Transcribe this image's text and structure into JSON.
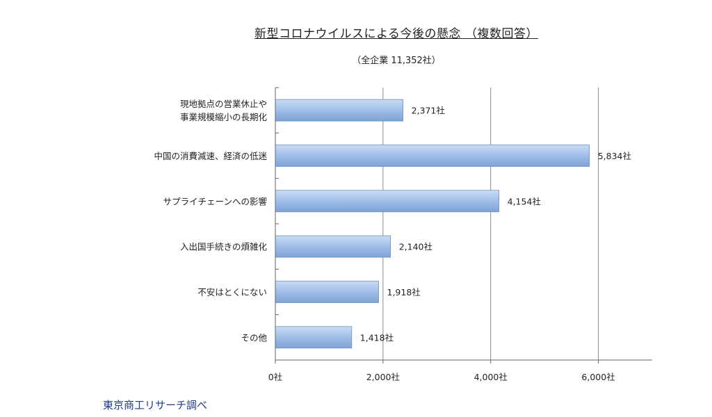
{
  "chart_data": {
    "type": "bar",
    "orientation": "horizontal",
    "title": "新型コロナウイルスによる今後の懸念 （複数回答）",
    "subtitle": "（全企業 11,352社）",
    "categories": [
      [
        "現地拠点の営業休止や",
        "事業規模縮小の長期化"
      ],
      [
        "中国の消費減速、経済の低迷"
      ],
      [
        "サプライチェーンへの影響"
      ],
      [
        "入出国手続きの煩雑化"
      ],
      [
        "不安はとくにない"
      ],
      [
        "その他"
      ]
    ],
    "values": [
      2371,
      5834,
      4154,
      2140,
      1918,
      1418
    ],
    "value_labels": [
      "2,371社",
      "5,834社",
      "4,154社",
      "2,140社",
      "1,918社",
      "1,418社"
    ],
    "xlim": [
      0,
      7000
    ],
    "x_ticks": [
      0,
      2000,
      4000,
      6000
    ],
    "x_tick_labels": [
      "0社",
      "2,000社",
      "4,000社",
      "6,000社"
    ],
    "grid": "vertical",
    "legend": "none",
    "bar_color": "#9cbbe6"
  },
  "source_note": "東京商工リサーチ調べ"
}
